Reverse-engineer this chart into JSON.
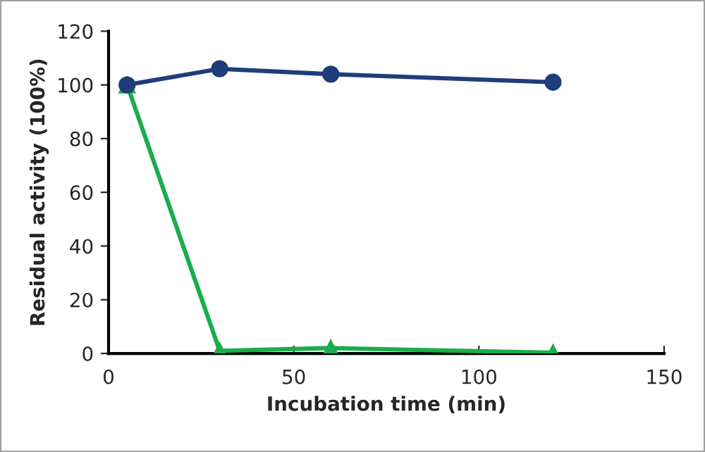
{
  "chart_data": {
    "type": "line",
    "xlabel": "Incubation time (min)",
    "ylabel": "Residual activity (100%)",
    "xlim": [
      0,
      150
    ],
    "xticks": [
      0,
      50,
      100,
      150
    ],
    "ylim": [
      0,
      120
    ],
    "yticks": [
      0,
      20,
      40,
      60,
      80,
      100,
      120
    ],
    "grid": false,
    "legend": false,
    "series": [
      {
        "color": "#1f3d7a",
        "marker": "circle",
        "x": [
          5,
          30,
          60,
          120
        ],
        "values": [
          100,
          106,
          104,
          101
        ]
      },
      {
        "color": "#1aad4b",
        "marker": "triangle",
        "x": [
          5,
          30,
          60,
          120
        ],
        "values": [
          100,
          1,
          2,
          0.3
        ]
      }
    ]
  }
}
